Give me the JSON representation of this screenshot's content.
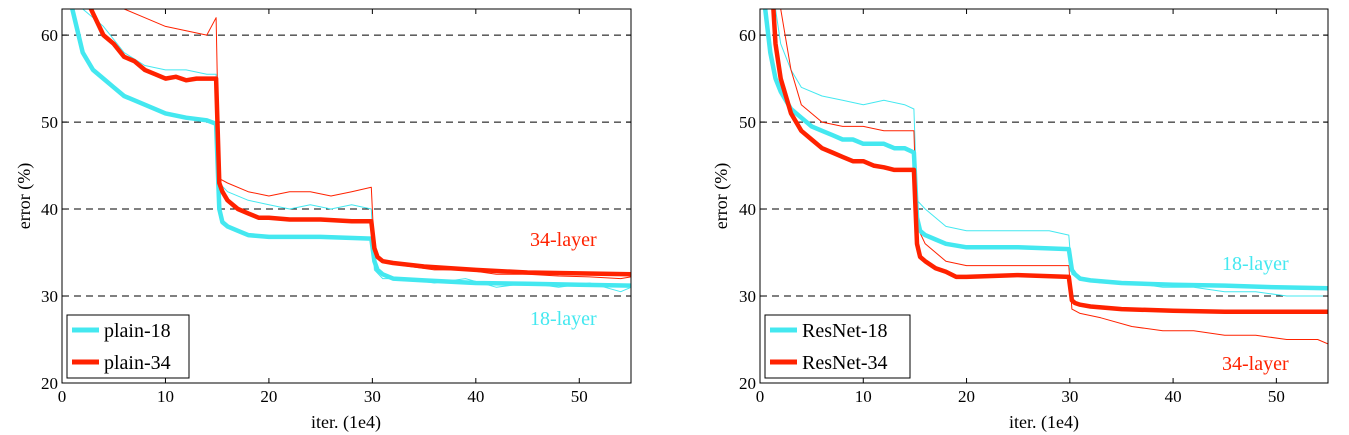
{
  "chart_data": [
    {
      "type": "line",
      "xlabel": "iter. (1e4)",
      "ylabel": "error (%)",
      "xlim": [
        0,
        55
      ],
      "ylim": [
        20,
        63
      ],
      "xticks": [
        0,
        10,
        20,
        30,
        40,
        50
      ],
      "yticks": [
        20,
        30,
        40,
        50,
        60
      ],
      "grid": "dashed horizontal at 30, 40, 50, 60",
      "legend": {
        "position": "bottom-left",
        "entries": [
          "plain-18",
          "plain-34"
        ]
      },
      "annotations": [
        {
          "text": "34-layer",
          "color": "#ff2200"
        },
        {
          "text": "18-layer",
          "color": "#44e8f0"
        }
      ],
      "series": [
        {
          "name": "plain-18",
          "color": "#44e8f0",
          "kind": "val",
          "width": 4.5,
          "x": [
            1,
            1.5,
            2,
            3,
            4,
            5,
            6,
            8,
            10,
            12,
            14,
            14.9,
            15.2,
            15.5,
            16,
            17,
            18,
            20,
            25,
            29.9,
            30.2,
            30.5,
            31,
            32,
            35,
            40,
            45,
            50,
            55
          ],
          "y": [
            63,
            60.5,
            58,
            56,
            55,
            54,
            53,
            52,
            51,
            50.5,
            50.2,
            49.8,
            40,
            38.5,
            38,
            37.5,
            37,
            36.8,
            36.8,
            36.6,
            34,
            33,
            32.5,
            32,
            31.8,
            31.5,
            31.4,
            31.3,
            31.2
          ]
        },
        {
          "name": "plain-34",
          "color": "#ff2200",
          "kind": "val",
          "width": 4.5,
          "x": [
            2.8,
            3,
            4,
            5,
            6,
            7,
            8,
            9,
            10,
            11,
            12,
            13,
            14,
            14.9,
            15.2,
            15.5,
            16,
            17,
            18,
            19,
            20,
            22,
            25,
            28,
            29.9,
            30.2,
            30.5,
            31,
            32,
            35,
            40,
            45,
            50,
            55
          ],
          "y": [
            63,
            62.5,
            60,
            59,
            57.5,
            57,
            56,
            55.5,
            55,
            55.2,
            54.8,
            55,
            55,
            55,
            43,
            42,
            41,
            40,
            39.5,
            39,
            39,
            38.8,
            38.8,
            38.6,
            38.6,
            35.5,
            34.5,
            34,
            33.8,
            33.4,
            33,
            32.7,
            32.6,
            32.5
          ]
        },
        {
          "name": "plain-18 train",
          "color": "#44e8f0",
          "kind": "train",
          "width": 1,
          "x": [
            2,
            4,
            6,
            8,
            10,
            12,
            14,
            14.9,
            15.2,
            16,
            18,
            20,
            22,
            24,
            26,
            28,
            29.9,
            30.2,
            31,
            33,
            36,
            39,
            42,
            45,
            48,
            51,
            54,
            55
          ],
          "y": [
            63,
            61,
            58,
            56.5,
            56,
            56,
            55.5,
            55.5,
            43,
            42,
            41,
            40.5,
            40,
            40.5,
            40,
            40.5,
            40,
            33,
            32,
            32,
            31.5,
            32,
            31,
            31.5,
            31,
            31.5,
            30.5,
            31
          ]
        },
        {
          "name": "plain-34 train",
          "color": "#ff2200",
          "kind": "train",
          "width": 1,
          "x": [
            6,
            8,
            10,
            12,
            14,
            14.9,
            15.2,
            16,
            18,
            20,
            22,
            24,
            26,
            28,
            29.9,
            30.2,
            31,
            33,
            36,
            39,
            42,
            45,
            48,
            51,
            54,
            55
          ],
          "y": [
            63,
            62,
            61,
            60.5,
            60,
            62,
            43.5,
            43,
            42,
            41.5,
            42,
            42,
            41.5,
            42,
            42.5,
            35,
            34,
            33.5,
            33,
            33,
            32.5,
            32.5,
            32.3,
            32.2,
            32,
            32.2
          ]
        }
      ]
    },
    {
      "type": "line",
      "xlabel": "iter. (1e4)",
      "ylabel": "error (%)",
      "xlim": [
        0,
        55
      ],
      "ylim": [
        20,
        63
      ],
      "xticks": [
        0,
        10,
        20,
        30,
        40,
        50
      ],
      "yticks": [
        20,
        30,
        40,
        50,
        60
      ],
      "grid": "dashed horizontal at 30, 40, 50, 60",
      "legend": {
        "position": "bottom-left",
        "entries": [
          "ResNet-18",
          "ResNet-34"
        ]
      },
      "annotations": [
        {
          "text": "18-layer",
          "color": "#44e8f0"
        },
        {
          "text": "34-layer",
          "color": "#ff2200"
        }
      ],
      "series": [
        {
          "name": "ResNet-18",
          "color": "#44e8f0",
          "kind": "val",
          "width": 4.5,
          "x": [
            0.5,
            1,
            1.5,
            2,
            3,
            4,
            5,
            6,
            7,
            8,
            9,
            10,
            11,
            12,
            13,
            14,
            14.9,
            15.2,
            15.5,
            16,
            17,
            18,
            20,
            25,
            29.9,
            30.2,
            30.5,
            31,
            32,
            35,
            40,
            45,
            50,
            55
          ],
          "y": [
            63,
            58,
            55,
            53.5,
            51.5,
            50.5,
            49.5,
            49,
            48.5,
            48,
            48,
            47.5,
            47.5,
            47.5,
            47,
            47,
            46.5,
            39,
            37.5,
            37,
            36.5,
            36,
            35.6,
            35.6,
            35.4,
            33,
            32.5,
            32,
            31.8,
            31.5,
            31.3,
            31.2,
            31,
            30.9
          ]
        },
        {
          "name": "ResNet-34",
          "color": "#ff2200",
          "kind": "val",
          "width": 4.5,
          "x": [
            1.3,
            1.5,
            2,
            3,
            4,
            5,
            6,
            7,
            8,
            9,
            10,
            11,
            12,
            13,
            14,
            14.9,
            15.2,
            15.5,
            16,
            17,
            18,
            19,
            20,
            25,
            29.9,
            30.2,
            30.5,
            31,
            32,
            35,
            40,
            45,
            50,
            55
          ],
          "y": [
            63,
            59,
            55,
            51,
            49,
            48,
            47,
            46.5,
            46,
            45.5,
            45.5,
            45,
            44.8,
            44.5,
            44.5,
            44.5,
            36,
            34.5,
            34,
            33.2,
            32.8,
            32.2,
            32.2,
            32.4,
            32.2,
            29.5,
            29.2,
            29,
            28.8,
            28.5,
            28.3,
            28.2,
            28.2,
            28.2
          ]
        },
        {
          "name": "ResNet-18 train",
          "color": "#44e8f0",
          "kind": "train",
          "width": 1,
          "x": [
            1.5,
            2,
            3,
            4,
            6,
            8,
            10,
            12,
            14,
            14.9,
            15.2,
            16,
            18,
            20,
            24,
            28,
            29.9,
            30.2,
            31,
            33,
            36,
            39,
            42,
            45,
            48,
            51,
            54,
            55
          ],
          "y": [
            63,
            59,
            56,
            54,
            53,
            52.5,
            52,
            52.5,
            52,
            51.5,
            41,
            40,
            38,
            37.5,
            37.5,
            37.5,
            37,
            32.5,
            32,
            31.5,
            31.5,
            31,
            31,
            30.5,
            30.5,
            30,
            30,
            30
          ]
        },
        {
          "name": "ResNet-34 train",
          "color": "#ff2200",
          "kind": "train",
          "width": 1,
          "x": [
            2,
            3,
            4,
            6,
            8,
            10,
            12,
            14,
            14.9,
            15.2,
            16,
            18,
            20,
            24,
            28,
            29.9,
            30.2,
            31,
            33,
            36,
            39,
            42,
            45,
            48,
            51,
            54,
            55
          ],
          "y": [
            63,
            56,
            52,
            50,
            49.5,
            49.5,
            49,
            49,
            49,
            38,
            36,
            34,
            33.5,
            33.5,
            33.5,
            33.5,
            28.5,
            28,
            27.5,
            26.5,
            26,
            26,
            25.5,
            25.5,
            25,
            25,
            24.5
          ]
        }
      ]
    }
  ]
}
